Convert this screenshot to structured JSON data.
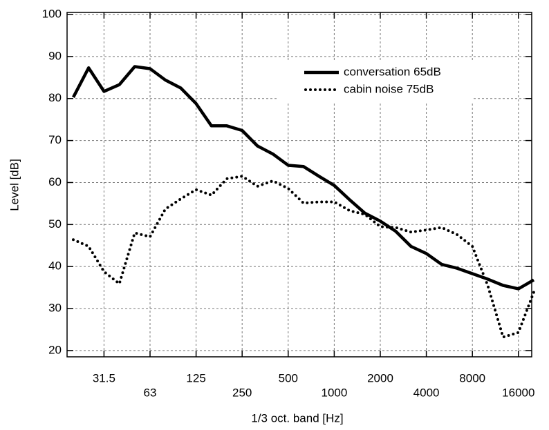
{
  "chart_data": {
    "type": "line",
    "xlabel": "1/3 oct. band [Hz]",
    "ylabel": "Level [dB]",
    "categories": [
      null,
      null,
      "31.5",
      null,
      null,
      "63",
      null,
      null,
      "125",
      null,
      null,
      "250",
      null,
      null,
      "500",
      null,
      null,
      "1000",
      null,
      null,
      "2000",
      null,
      null,
      "4000",
      null,
      null,
      "8000",
      null,
      null,
      "16000",
      null
    ],
    "series": [
      {
        "name": "conversation 65dB",
        "color": "#000000",
        "style": "solid",
        "values": [
          80.3,
          87.3,
          81.7,
          83.3,
          87.6,
          87.1,
          84.4,
          82.5,
          78.8,
          73.5,
          73.5,
          72.4,
          68.7,
          66.8,
          64.1,
          63.8,
          61.5,
          59.3,
          55.9,
          52.7,
          50.8,
          48.4,
          44.8,
          43.1,
          40.5,
          39.6,
          38.3,
          37.0,
          35.5,
          34.7,
          36.8
        ]
      },
      {
        "name": "cabin noise 75dB",
        "color": "#000000",
        "style": "dotted",
        "values": [
          46.4,
          44.8,
          38.8,
          35.9,
          48.0,
          47.1,
          53.7,
          56.1,
          58.3,
          57.0,
          60.9,
          61.5,
          59.1,
          60.4,
          58.6,
          55.1,
          55.4,
          55.4,
          53.3,
          52.4,
          49.5,
          49.3,
          48.2,
          48.7,
          49.3,
          47.6,
          44.8,
          35.5,
          23.2,
          24.3,
          33.9
        ]
      }
    ],
    "ylim": [
      18.5,
      100.5
    ],
    "yticks": [
      20,
      30,
      40,
      50,
      60,
      70,
      80,
      90,
      100
    ],
    "grid": true,
    "legend": "upper right"
  }
}
